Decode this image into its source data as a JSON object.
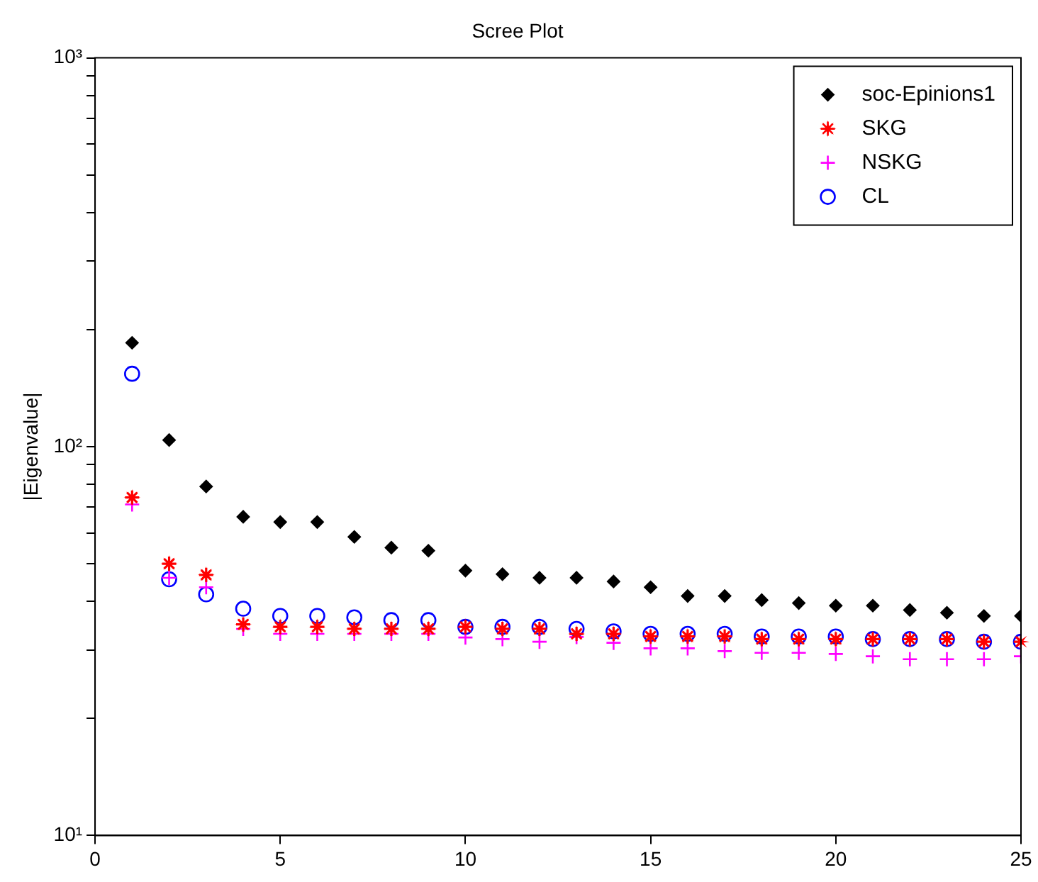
{
  "chart_data": {
    "type": "scatter",
    "title": "Scree Plot",
    "ylabel": "|Eigenvalue|",
    "x": [
      1,
      2,
      3,
      4,
      5,
      6,
      7,
      8,
      9,
      10,
      11,
      12,
      13,
      14,
      15,
      16,
      17,
      18,
      19,
      20,
      21,
      22,
      23,
      24,
      25
    ],
    "series": [
      {
        "name": "soc-Epinions1",
        "color": "#000000",
        "marker": "diamond",
        "values": [
          185,
          104,
          79,
          66,
          64,
          64,
          58.6,
          55,
          54,
          48,
          47,
          46,
          46,
          45,
          43.5,
          41.3,
          41.3,
          40.3,
          39.6,
          39,
          39,
          38,
          37.4,
          36.7,
          36.7
        ]
      },
      {
        "name": "SKG",
        "color": "#ff0000",
        "values": [
          74,
          50,
          46.8,
          34.9,
          34.4,
          34.4,
          34,
          34,
          34,
          34.4,
          34,
          34,
          33,
          33,
          32.5,
          32.5,
          32.5,
          32,
          32,
          32,
          32,
          32,
          32,
          31.5,
          31.5
        ]
      },
      {
        "name": "NSKG",
        "color": "#ff00ff",
        "marker": "cross",
        "values": [
          71,
          46,
          43.5,
          34,
          33,
          33,
          33,
          33,
          33,
          32.3,
          32,
          31.5,
          32.4,
          31.3,
          30.3,
          30.3,
          29.8,
          29.5,
          29.5,
          29.3,
          28.9,
          28.4,
          28.4,
          28.4,
          28.9
        ]
      },
      {
        "name": "CL",
        "color": "#0000ff",
        "marker": "circle",
        "values": [
          154,
          45.6,
          41.7,
          38.3,
          36.7,
          36.7,
          36.4,
          35.8,
          35.8,
          34.4,
          34.4,
          34.4,
          34,
          33.5,
          33,
          33,
          33,
          32.5,
          32.5,
          32.5,
          32,
          32,
          32,
          31.5,
          31.5
        ]
      }
    ],
    "xlim": [
      0,
      25
    ],
    "xticks": [
      0,
      5,
      10,
      15,
      20,
      25
    ],
    "log": "y",
    "ylim": [
      10,
      1000
    ],
    "yticks": [
      {
        "value": 10,
        "label": "10¹"
      },
      {
        "value": 20,
        "label": null
      },
      {
        "value": 30,
        "label": null
      },
      {
        "value": 40,
        "label": null
      },
      {
        "value": 50,
        "label": null
      },
      {
        "value": 60,
        "label": null
      },
      {
        "value": 70,
        "label": null
      },
      {
        "value": 80,
        "label": null
      },
      {
        "value": 90,
        "label": null
      },
      {
        "value": 100,
        "label": "10²"
      },
      {
        "value": 200,
        "label": null
      },
      {
        "value": 300,
        "label": null
      },
      {
        "value": 400,
        "label": null
      },
      {
        "value": 500,
        "label": null
      },
      {
        "value": 600,
        "label": null
      },
      {
        "value": 700,
        "label": null
      },
      {
        "value": 800,
        "label": null
      },
      {
        "value": 900,
        "label": null
      },
      {
        "value": 1000,
        "label": "10³"
      }
    ],
    "grid": false,
    "legend": "top right"
  }
}
